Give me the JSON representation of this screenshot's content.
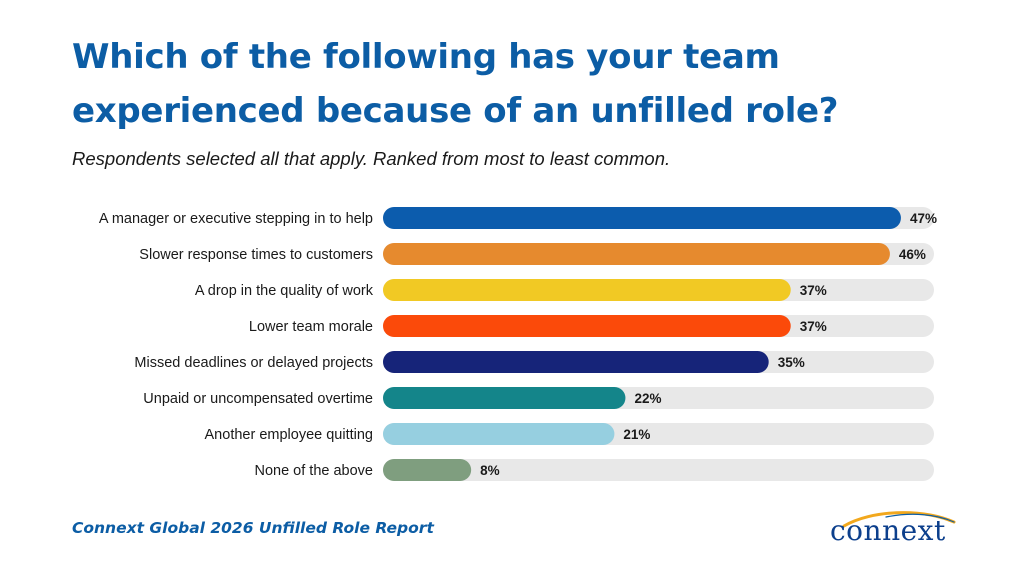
{
  "title": "Which of the following has your team experienced because of an unfilled role?",
  "subtitle": "Respondents selected all that apply. Ranked from most to least common.",
  "footer": "Connext Global 2026 Unfilled Role Report",
  "logo_text": "connext",
  "colors": {
    "title": "#0c5da5",
    "track": "#e8e8e8",
    "logo_swoosh": "#f2a81d"
  },
  "chart_data": {
    "type": "bar",
    "orientation": "horizontal",
    "categories": [
      "A manager or executive stepping in to help",
      "Slower response times to customers",
      "A drop in the quality of work",
      "Lower team morale",
      "Missed deadlines or delayed projects",
      "Unpaid or uncompensated overtime",
      "Another employee quitting",
      "None of the above"
    ],
    "values": [
      47,
      46,
      37,
      37,
      35,
      22,
      21,
      8
    ],
    "labels": [
      "47%",
      "46%",
      "37%",
      "37%",
      "35%",
      "22%",
      "21%",
      "8%"
    ],
    "colors": [
      "#0c5cad",
      "#e68a2e",
      "#f1c924",
      "#fb4a0a",
      "#162479",
      "#14858a",
      "#96cfe0",
      "#7f9e7f"
    ],
    "unit": "%",
    "grid": false,
    "legend": "none"
  }
}
